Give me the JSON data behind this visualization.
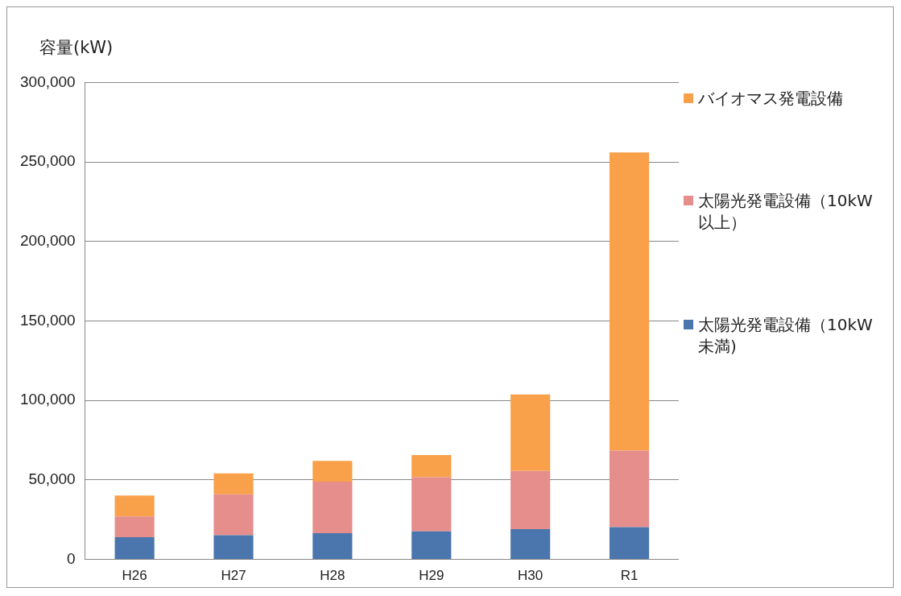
{
  "chart_data": {
    "type": "bar",
    "ylabel": "容量(kW)",
    "categories": [
      "H26",
      "H27",
      "H28",
      "H29",
      "H30",
      "R1"
    ],
    "stacked": true,
    "series": [
      {
        "name": "太陽光発電設備（10kW未満)",
        "color": "#4a76ad",
        "values": [
          14000,
          15300,
          16500,
          17600,
          19100,
          20300
        ]
      },
      {
        "name": "太陽光発電設備（10kW以上）",
        "color": "#e58e8c",
        "values": [
          13000,
          25600,
          32400,
          34100,
          36500,
          48100
        ]
      },
      {
        "name": "バイオマス発電設備",
        "color": "#f8a04a",
        "values": [
          13200,
          13200,
          13100,
          13900,
          48200,
          187600
        ]
      }
    ],
    "ylim": [
      0,
      300000
    ],
    "yticks": [
      {
        "value": 0,
        "label": "0"
      },
      {
        "value": 50000,
        "label": "50,000"
      },
      {
        "value": 100000,
        "label": "100,000"
      },
      {
        "value": 150000,
        "label": "150,000"
      },
      {
        "value": 200000,
        "label": "200,000"
      },
      {
        "value": 250000,
        "label": "250,000"
      },
      {
        "value": 300000,
        "label": "300,000"
      }
    ],
    "grid": "y",
    "legend": "right"
  }
}
